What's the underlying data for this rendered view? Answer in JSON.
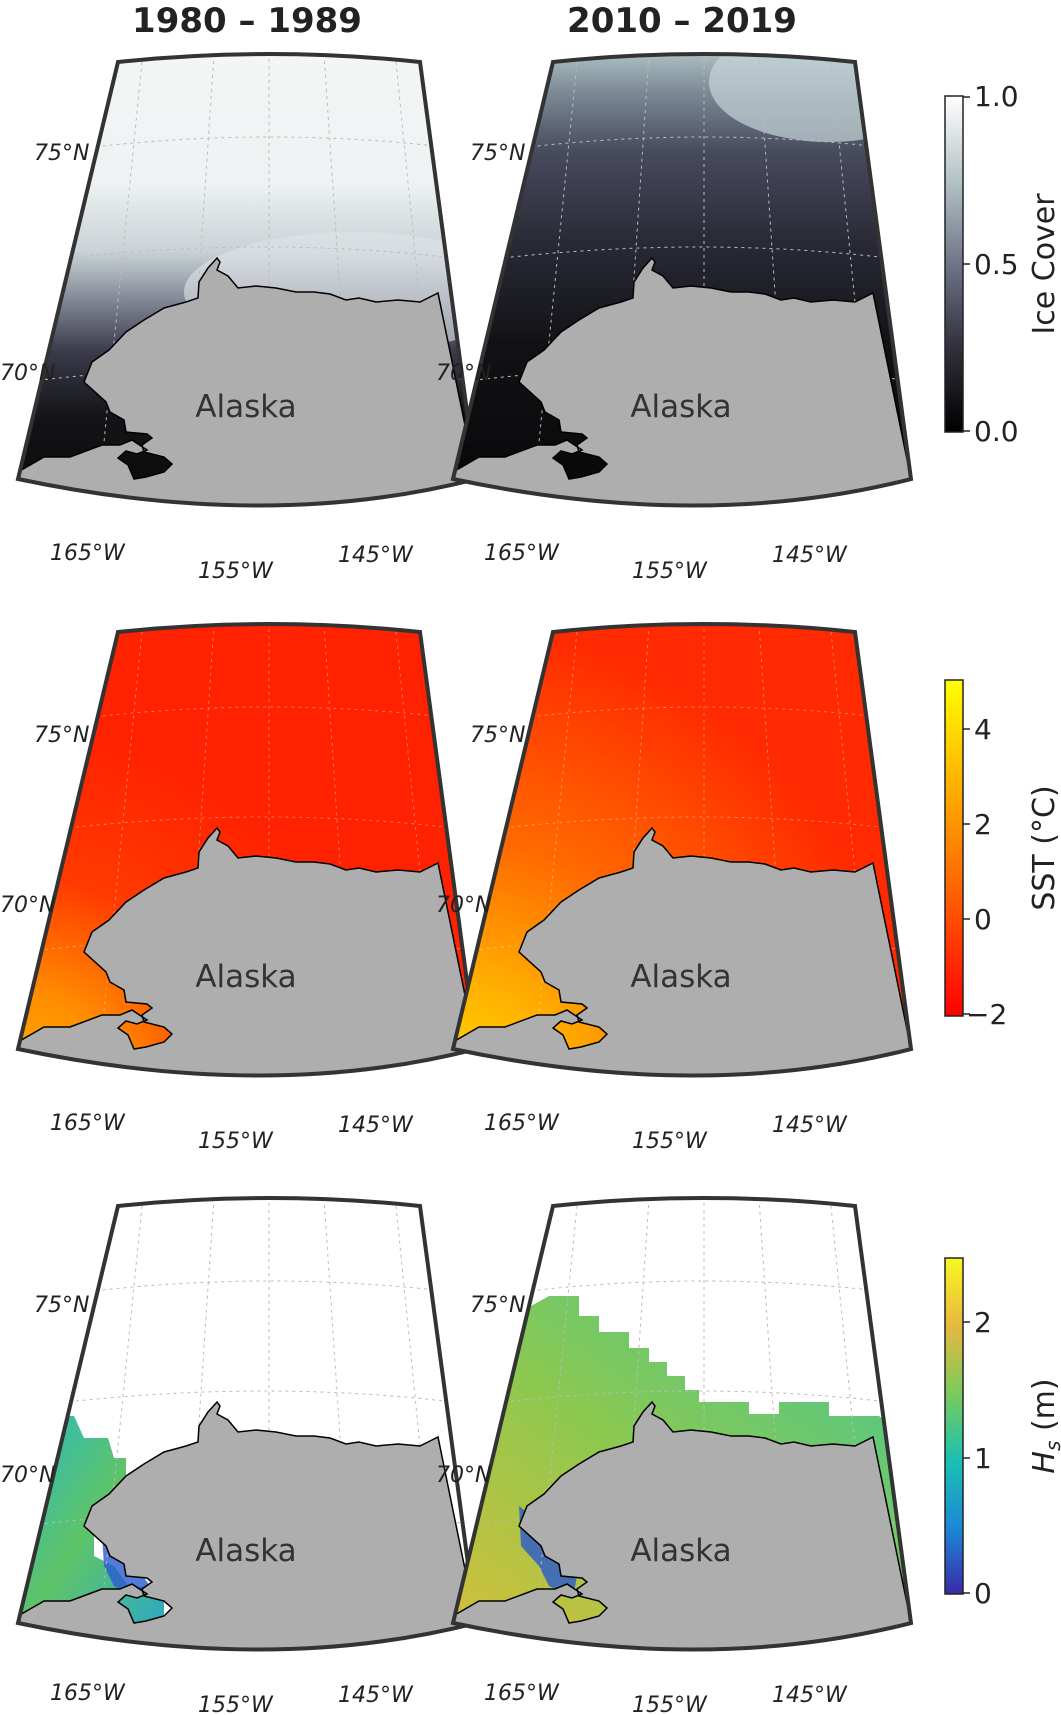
{
  "columns": [
    "1980 – 1989",
    "2010 – 2019"
  ],
  "land_label": "Alaska",
  "lat_labels": [
    "75°N",
    "70°N"
  ],
  "lon_labels": [
    "165°W",
    "155°W",
    "145°W"
  ],
  "rows": [
    {
      "variable": "Ice Cover",
      "colorbar_title": "Ice Cover",
      "colorbar_ticks": [
        "1.0",
        "0.5",
        "0.0"
      ],
      "colormap": [
        "#000000",
        "#2b2b3a",
        "#5a5c70",
        "#8e9aa3",
        "#c7d4d6",
        "#ffffff"
      ]
    },
    {
      "variable": "SST",
      "colorbar_title": "SST (°C)",
      "colorbar_ticks": [
        "4",
        "2",
        "0",
        "−2"
      ],
      "colormap": [
        "#ff1a00",
        "#ff4a00",
        "#ff8000",
        "#ffb000",
        "#ffe000",
        "#ffff00"
      ]
    },
    {
      "variable": "Hs",
      "colorbar_title_main": "H",
      "colorbar_title_sub": "s",
      "colorbar_title_unit": " (m)",
      "colorbar_ticks": [
        "2",
        "1",
        "0"
      ],
      "colormap": [
        "#3a2aa8",
        "#1b8ad8",
        "#1cc0b0",
        "#7ccb5a",
        "#e5c040",
        "#f8f820"
      ]
    }
  ],
  "colors": {
    "land": "#aeaeae",
    "frame": "#333333",
    "grid": "#bbbbbb",
    "no_data": "#ffffff"
  }
}
